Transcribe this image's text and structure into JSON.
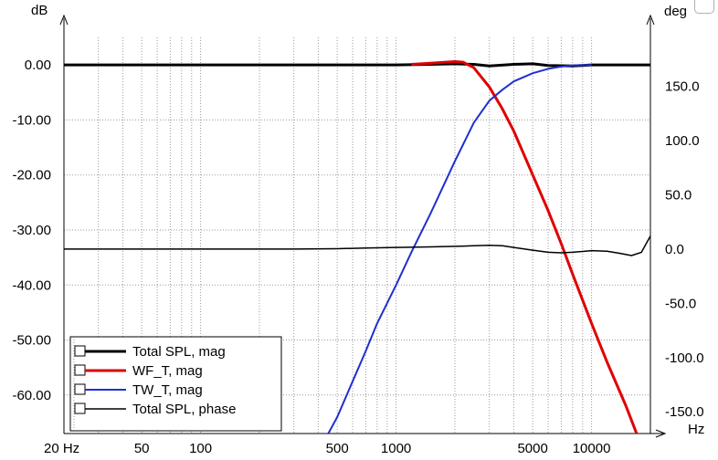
{
  "chart_data": {
    "type": "line",
    "x_scale": "log",
    "xlim": [
      20,
      20000
    ],
    "ylim_left": [
      -67,
      5
    ],
    "ylim_right": [
      -170,
      195
    ],
    "left_unit": "dB",
    "right_unit": "deg",
    "x_unit": "Hz",
    "x_ticks": [
      {
        "value": 20,
        "label": "20 Hz"
      },
      {
        "value": 50,
        "label": "50"
      },
      {
        "value": 100,
        "label": "100"
      },
      {
        "value": 500,
        "label": "500"
      },
      {
        "value": 1000,
        "label": "1000"
      },
      {
        "value": 5000,
        "label": "5000"
      },
      {
        "value": 10000,
        "label": "10000"
      }
    ],
    "left_ticks": [
      {
        "value": 0,
        "label": "0.00"
      },
      {
        "value": -10,
        "label": "-10.00"
      },
      {
        "value": -20,
        "label": "-20.00"
      },
      {
        "value": -30,
        "label": "-30.00"
      },
      {
        "value": -40,
        "label": "-40.00"
      },
      {
        "value": -50,
        "label": "-50.00"
      },
      {
        "value": -60,
        "label": "-60.00"
      }
    ],
    "right_ticks": [
      {
        "value": 150,
        "label": "150.0"
      },
      {
        "value": 100,
        "label": "100.0"
      },
      {
        "value": 50,
        "label": "50.0"
      },
      {
        "value": 0,
        "label": "0.0"
      },
      {
        "value": -50,
        "label": "-50.0"
      },
      {
        "value": -100,
        "label": "-100.0"
      },
      {
        "value": -150,
        "label": "-150.0"
      }
    ],
    "grid": true,
    "legend_position": "bottom-left",
    "series": [
      {
        "name": "Total SPL, mag",
        "color": "#000000",
        "axis": "left",
        "width": 3,
        "x": [
          20,
          1000,
          1500,
          2000,
          2500,
          3000,
          4000,
          5000,
          6000,
          8000,
          10000,
          15000,
          20000
        ],
        "y": [
          0,
          0,
          0.1,
          0.2,
          0.1,
          -0.2,
          0.1,
          0.2,
          -0.1,
          -0.2,
          0,
          0,
          0
        ]
      },
      {
        "name": "WF_T, mag",
        "color": "#e00000",
        "axis": "left",
        "width": 3,
        "x": [
          1200,
          1500,
          1800,
          2000,
          2200,
          2500,
          3000,
          3500,
          4000,
          5000,
          6000,
          7000,
          8000,
          10000,
          12000,
          15000,
          17000
        ],
        "y": [
          0.1,
          0.3,
          0.5,
          0.6,
          0.5,
          -0.5,
          -4,
          -8,
          -12,
          -20,
          -26.5,
          -32.5,
          -38,
          -47,
          -54,
          -62,
          -67
        ]
      },
      {
        "name": "TW_T, mag",
        "color": "#1f30d0",
        "axis": "left",
        "width": 2,
        "x": [
          450,
          500,
          600,
          700,
          800,
          1000,
          1200,
          1500,
          2000,
          2500,
          3000,
          3500,
          4000,
          5000,
          6000,
          7000,
          8000,
          10000
        ],
        "y": [
          -67,
          -64,
          -57.5,
          -52,
          -47,
          -40,
          -34,
          -27,
          -17.5,
          -10.5,
          -6.5,
          -4.5,
          -3,
          -1.5,
          -0.7,
          -0.3,
          -0.1,
          0
        ]
      },
      {
        "name": "Total SPL, phase",
        "color": "#000000",
        "axis": "right",
        "width": 1.5,
        "x": [
          20,
          300,
          500,
          700,
          1000,
          1500,
          2000,
          2500,
          3000,
          3500,
          4000,
          5000,
          6000,
          7000,
          8000,
          10000,
          12000,
          14000,
          16000,
          18000,
          20000
        ],
        "y": [
          0,
          0,
          0.3,
          1,
          1.5,
          2,
          2.5,
          3,
          3.5,
          3,
          1.5,
          -1,
          -3,
          -3.5,
          -3,
          -1.5,
          -2,
          -4,
          -6,
          -3,
          12
        ]
      }
    ]
  }
}
